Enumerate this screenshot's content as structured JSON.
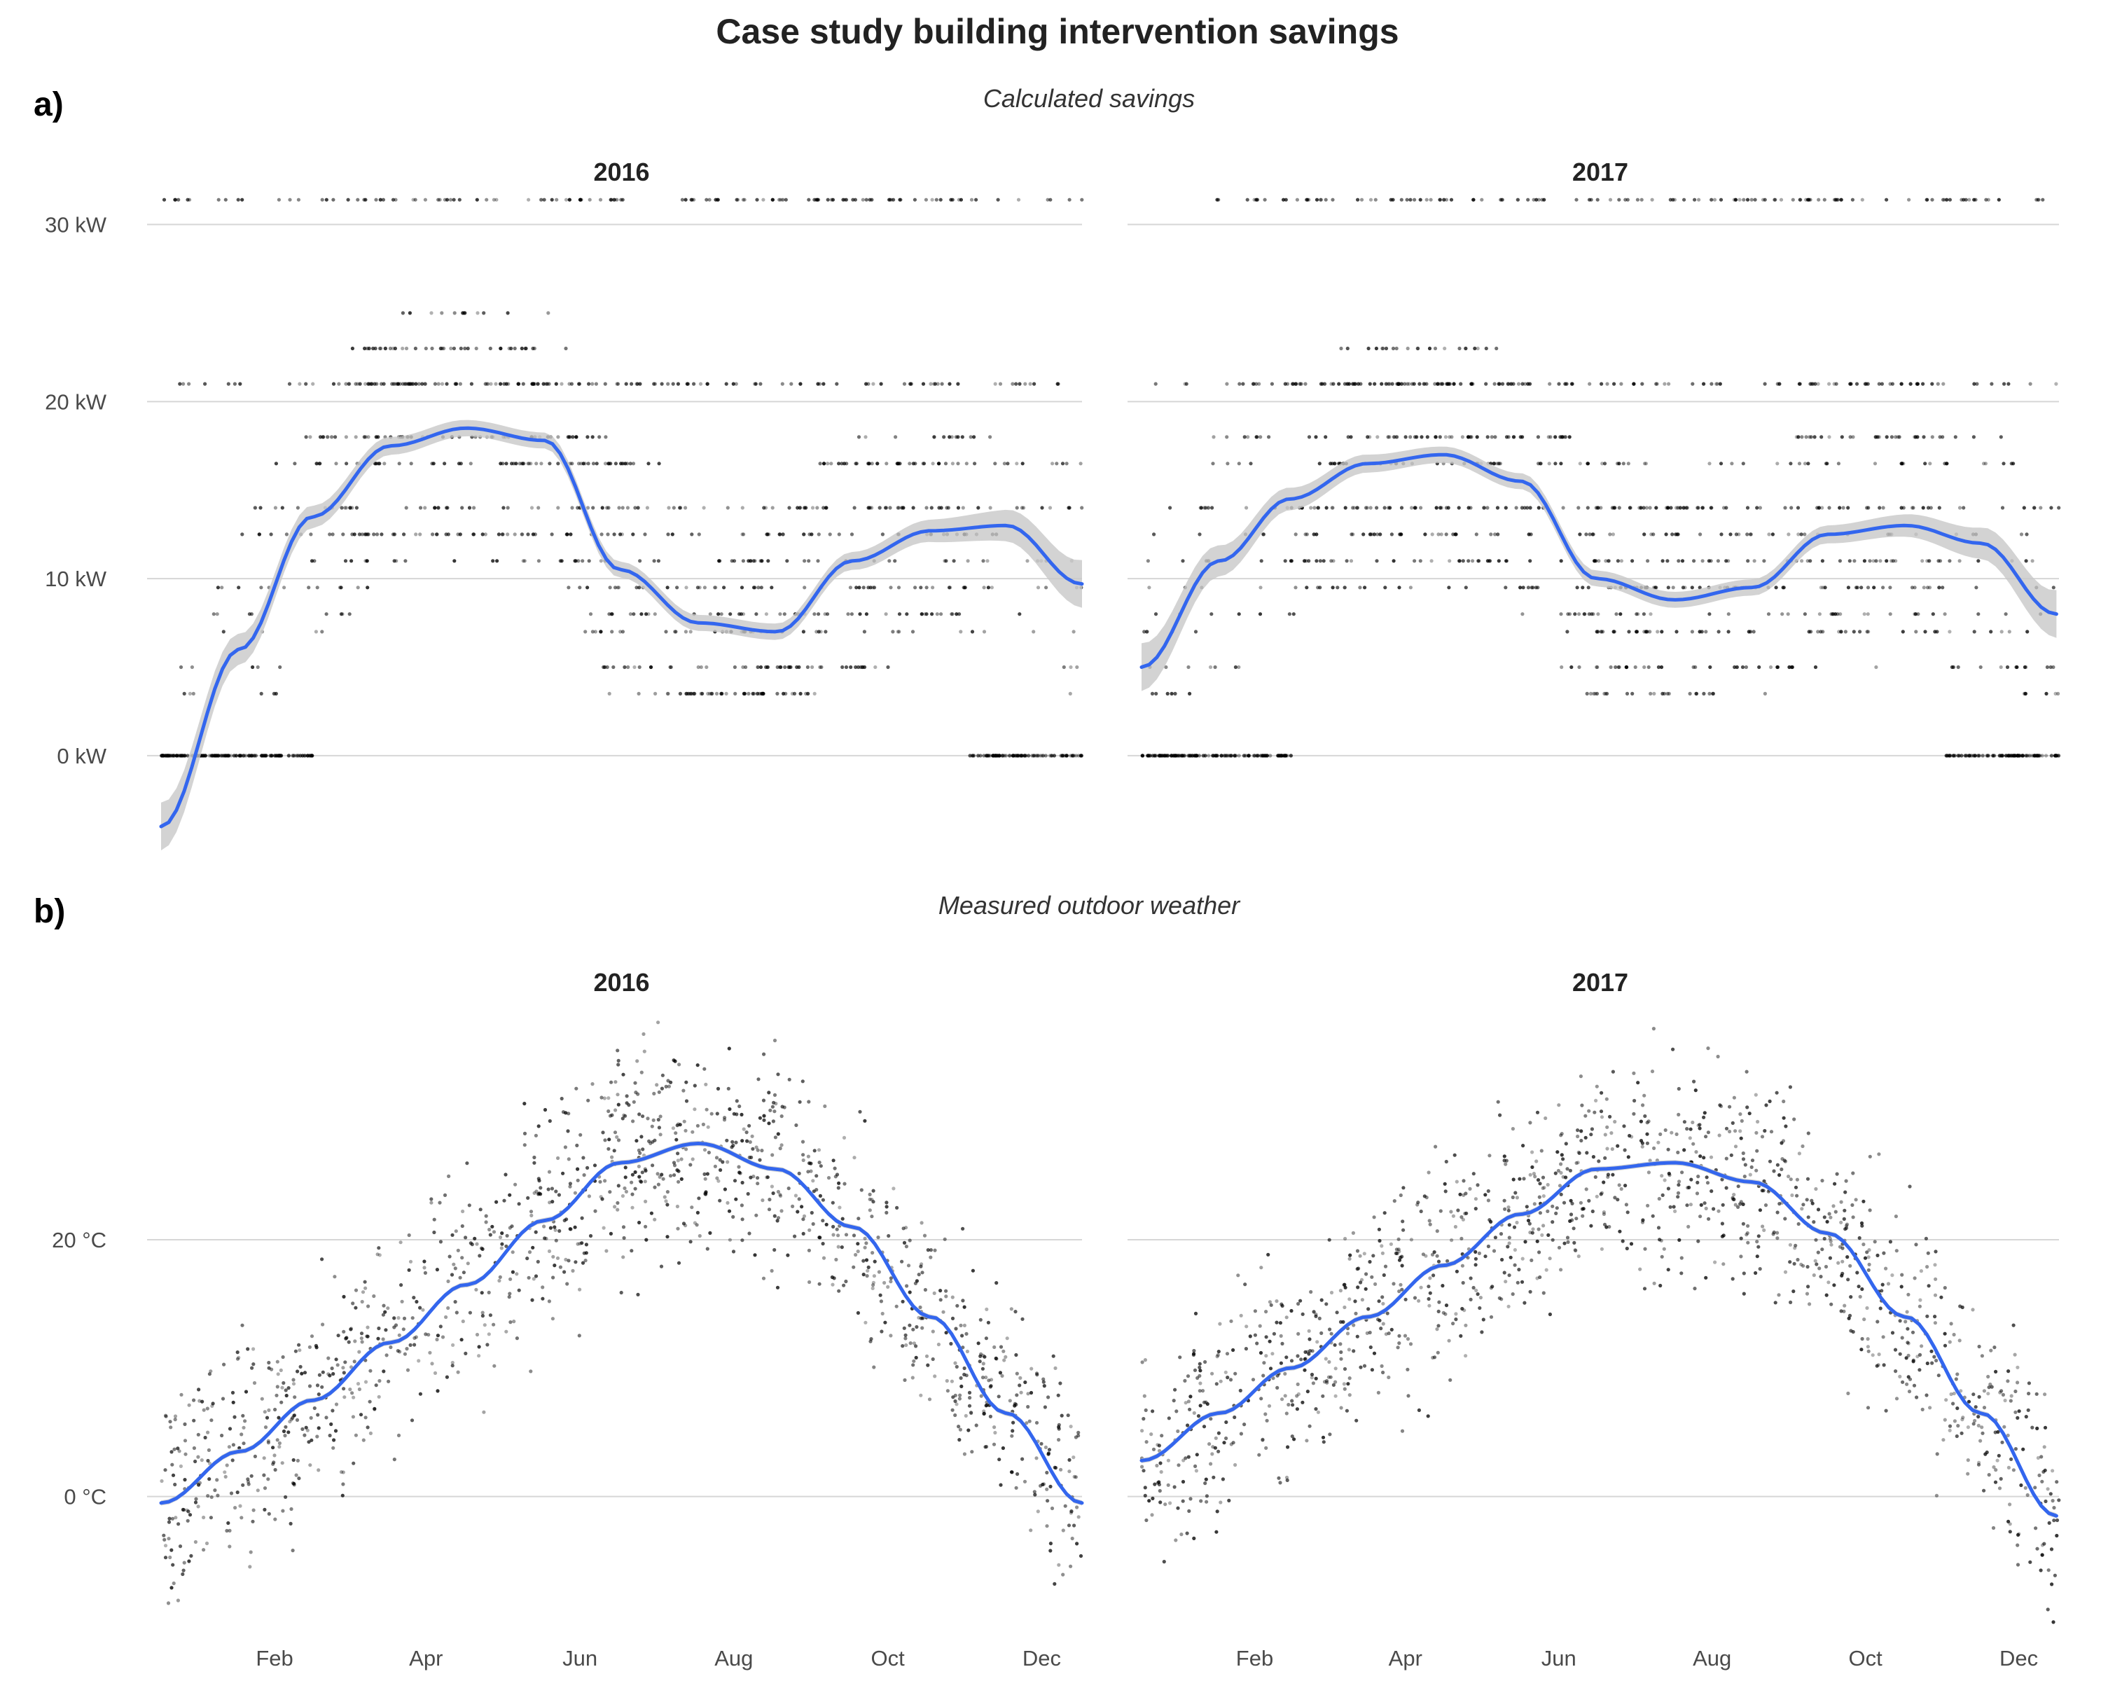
{
  "title": "Case study building intervention savings",
  "panels": [
    {
      "label": "a)",
      "subtitle": "Calculated savings"
    },
    {
      "label": "b)",
      "subtitle": "Measured outdoor weather"
    }
  ],
  "colors": {
    "fit": "#3366ee",
    "band": "#c8c8c8",
    "points": "#000000",
    "grid": "#d6d6d6"
  },
  "chart_data": [
    {
      "type": "scatter",
      "title": "Calculated savings",
      "x_axis": "day of year",
      "y_ticks": [
        0,
        10,
        20,
        30
      ],
      "y_tick_labels": [
        "0 kW",
        "10 kW",
        "20 kW",
        "30 kW"
      ],
      "ylim": [
        -4,
        32
      ],
      "xlim": [
        "2016-01-01",
        "2016-12-31"
      ],
      "grid": true,
      "facets": [
        "2016",
        "2017"
      ],
      "smooth": [
        {
          "facet": "2016",
          "x": [
            "2016-01-01",
            "2016-02-01",
            "2016-03-01",
            "2016-04-01",
            "2016-05-01",
            "2016-06-01",
            "2016-07-01",
            "2016-08-01",
            "2016-09-01",
            "2016-10-01",
            "2016-11-01",
            "2016-12-01",
            "2016-12-31"
          ],
          "y": [
            -4,
            6,
            13.5,
            17.5,
            18.5,
            17.8,
            10.5,
            7.5,
            7.0,
            11.0,
            12.7,
            13.0,
            9.7
          ]
        },
        {
          "facet": "2017",
          "x": [
            "2017-01-01",
            "2017-02-01",
            "2017-03-01",
            "2017-04-01",
            "2017-05-01",
            "2017-06-01",
            "2017-07-01",
            "2017-08-01",
            "2017-09-01",
            "2017-10-01",
            "2017-11-01",
            "2017-12-01",
            "2017-12-31"
          ],
          "y": [
            5,
            11,
            14.5,
            16.5,
            17,
            15.5,
            10,
            8.8,
            9.5,
            12.5,
            13.0,
            12.0,
            8.0
          ]
        }
      ]
    },
    {
      "type": "scatter",
      "title": "Measured outdoor weather",
      "x_axis": "month",
      "x_ticks": [
        "Feb",
        "Apr",
        "Jun",
        "Aug",
        "Oct",
        "Dec"
      ],
      "y_ticks": [
        0,
        20
      ],
      "y_tick_labels": [
        "0 °C",
        "20 °C"
      ],
      "ylim": [
        -10,
        38
      ],
      "xlim": [
        "2016-01-01",
        "2016-12-31"
      ],
      "grid": true,
      "facets": [
        "2016",
        "2017"
      ],
      "smooth": [
        {
          "facet": "2016",
          "x": [
            "2016-01-01",
            "2016-02-01",
            "2016-03-01",
            "2016-04-01",
            "2016-05-01",
            "2016-06-01",
            "2016-07-01",
            "2016-08-01",
            "2016-09-01",
            "2016-10-01",
            "2016-11-01",
            "2016-12-01",
            "2016-12-31"
          ],
          "y": [
            -0.5,
            3.5,
            7.5,
            12.0,
            16.5,
            21.5,
            26.0,
            27.5,
            25.5,
            21.0,
            14.0,
            6.5,
            -0.5
          ]
        },
        {
          "facet": "2017",
          "x": [
            "2017-01-01",
            "2017-02-01",
            "2017-03-01",
            "2017-04-01",
            "2017-05-01",
            "2017-06-01",
            "2017-07-01",
            "2017-08-01",
            "2017-09-01",
            "2017-10-01",
            "2017-11-01",
            "2017-12-01",
            "2017-12-31"
          ],
          "y": [
            2.8,
            6.5,
            10.0,
            14.0,
            18.0,
            22.0,
            25.5,
            26.0,
            24.5,
            20.5,
            14.0,
            6.5,
            -1.5
          ]
        }
      ]
    }
  ]
}
